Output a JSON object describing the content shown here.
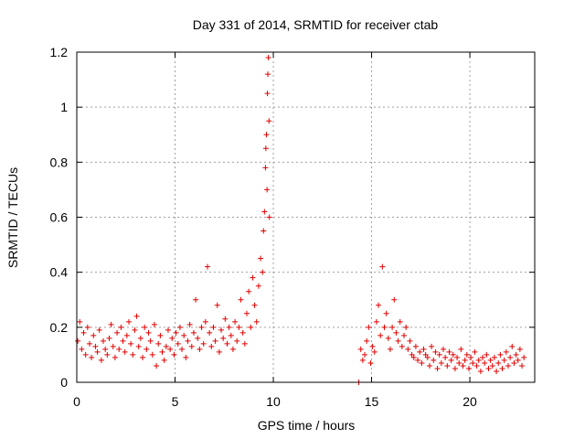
{
  "chart_data": {
    "type": "scatter",
    "title": "Day 331 of 2014, SRMTID for receiver ctab",
    "xlabel": "GPS time / hours",
    "ylabel": "SRMTID / TECUs",
    "xlim": [
      0,
      23.3
    ],
    "ylim": [
      0,
      1.2
    ],
    "xticks": [
      0,
      5,
      10,
      15,
      20
    ],
    "xtick_labels": [
      "0",
      "5",
      "10",
      "15",
      "20"
    ],
    "yticks": [
      0,
      0.2,
      0.4,
      0.6,
      0.8,
      1.0,
      1.2
    ],
    "ytick_labels": [
      "0",
      "0.2",
      "0.4",
      "0.6",
      "0.8",
      "1",
      "1.2"
    ],
    "grid": true,
    "marker": "+",
    "series": [
      {
        "name": "SRMTID",
        "color": "#e00000",
        "x": [
          0.05,
          0.15,
          0.25,
          0.35,
          0.45,
          0.55,
          0.65,
          0.75,
          0.85,
          0.95,
          1.05,
          1.15,
          1.25,
          1.35,
          1.45,
          1.55,
          1.65,
          1.75,
          1.85,
          1.95,
          2.05,
          2.15,
          2.25,
          2.35,
          2.45,
          2.55,
          2.65,
          2.75,
          2.85,
          2.95,
          3.05,
          3.15,
          3.25,
          3.35,
          3.45,
          3.55,
          3.65,
          3.75,
          3.85,
          3.95,
          4.05,
          4.15,
          4.25,
          4.35,
          4.45,
          4.55,
          4.65,
          4.75,
          4.85,
          4.95,
          5.05,
          5.15,
          5.25,
          5.35,
          5.45,
          5.55,
          5.65,
          5.75,
          5.85,
          5.95,
          6.05,
          6.15,
          6.25,
          6.35,
          6.45,
          6.55,
          6.65,
          6.75,
          6.85,
          6.95,
          7.05,
          7.15,
          7.25,
          7.35,
          7.45,
          7.55,
          7.65,
          7.75,
          7.85,
          7.95,
          8.05,
          8.15,
          8.25,
          8.35,
          8.45,
          8.55,
          8.65,
          8.75,
          8.85,
          8.95,
          9.05,
          9.15,
          9.25,
          9.35,
          9.45,
          9.5,
          9.55,
          9.6,
          9.62,
          9.65,
          9.68,
          9.7,
          9.72,
          9.75,
          9.78,
          9.8,
          14.35,
          14.45,
          14.55,
          14.65,
          14.75,
          14.85,
          14.95,
          15.05,
          15.15,
          15.25,
          15.35,
          15.45,
          15.55,
          15.65,
          15.75,
          15.85,
          15.95,
          16.05,
          16.15,
          16.25,
          16.35,
          16.45,
          16.55,
          16.65,
          16.75,
          16.85,
          16.95,
          17.05,
          17.15,
          17.25,
          17.35,
          17.45,
          17.55,
          17.65,
          17.75,
          17.85,
          17.95,
          18.05,
          18.15,
          18.25,
          18.35,
          18.45,
          18.55,
          18.65,
          18.75,
          18.85,
          18.95,
          19.05,
          19.15,
          19.25,
          19.35,
          19.45,
          19.55,
          19.65,
          19.75,
          19.85,
          19.95,
          20.05,
          20.15,
          20.25,
          20.35,
          20.45,
          20.55,
          20.65,
          20.75,
          20.85,
          20.95,
          21.05,
          21.15,
          21.25,
          21.35,
          21.45,
          21.55,
          21.65,
          21.75,
          21.85,
          21.95,
          22.05,
          22.15,
          22.25,
          22.35,
          22.45,
          22.55,
          22.65,
          22.75
        ],
        "y": [
          0.15,
          0.22,
          0.12,
          0.18,
          0.1,
          0.2,
          0.14,
          0.09,
          0.17,
          0.13,
          0.11,
          0.19,
          0.08,
          0.15,
          0.12,
          0.1,
          0.16,
          0.21,
          0.13,
          0.09,
          0.18,
          0.12,
          0.2,
          0.15,
          0.11,
          0.17,
          0.22,
          0.14,
          0.1,
          0.19,
          0.24,
          0.13,
          0.16,
          0.09,
          0.2,
          0.12,
          0.18,
          0.15,
          0.1,
          0.21,
          0.06,
          0.14,
          0.17,
          0.11,
          0.08,
          0.13,
          0.19,
          0.12,
          0.16,
          0.1,
          0.18,
          0.14,
          0.2,
          0.12,
          0.17,
          0.09,
          0.15,
          0.21,
          0.13,
          0.18,
          0.3,
          0.16,
          0.12,
          0.2,
          0.14,
          0.22,
          0.42,
          0.18,
          0.13,
          0.2,
          0.15,
          0.28,
          0.11,
          0.19,
          0.16,
          0.23,
          0.14,
          0.2,
          0.17,
          0.12,
          0.22,
          0.15,
          0.2,
          0.3,
          0.18,
          0.14,
          0.25,
          0.33,
          0.2,
          0.38,
          0.28,
          0.22,
          0.35,
          0.45,
          0.4,
          0.55,
          0.62,
          0.78,
          0.85,
          0.9,
          0.7,
          1.05,
          1.12,
          1.18,
          0.95,
          0.6,
          0.0,
          0.12,
          0.08,
          0.1,
          0.15,
          0.2,
          0.07,
          0.13,
          0.11,
          0.22,
          0.28,
          0.17,
          0.42,
          0.2,
          0.25,
          0.16,
          0.12,
          0.2,
          0.3,
          0.18,
          0.15,
          0.22,
          0.13,
          0.17,
          0.2,
          0.12,
          0.15,
          0.1,
          0.09,
          0.13,
          0.08,
          0.11,
          0.07,
          0.12,
          0.1,
          0.09,
          0.06,
          0.13,
          0.08,
          0.11,
          0.05,
          0.1,
          0.07,
          0.12,
          0.09,
          0.06,
          0.11,
          0.08,
          0.1,
          0.05,
          0.09,
          0.07,
          0.12,
          0.06,
          0.08,
          0.1,
          0.05,
          0.09,
          0.07,
          0.11,
          0.06,
          0.08,
          0.04,
          0.09,
          0.07,
          0.1,
          0.05,
          0.08,
          0.06,
          0.09,
          0.04,
          0.07,
          0.1,
          0.05,
          0.08,
          0.11,
          0.06,
          0.09,
          0.13,
          0.07,
          0.1,
          0.08,
          0.12,
          0.06,
          0.09
        ]
      }
    ]
  }
}
